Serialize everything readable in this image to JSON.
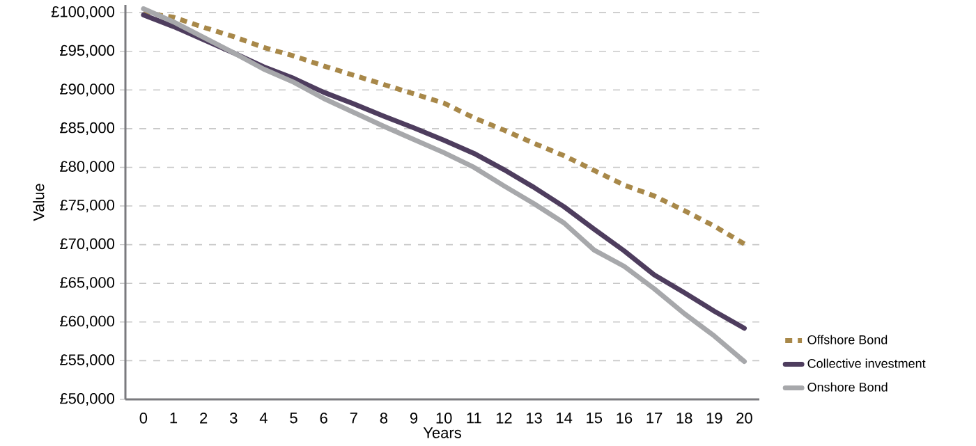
{
  "chart_data": {
    "type": "line",
    "xlabel": "Years",
    "ylabel": "Value",
    "x": [
      0,
      1,
      2,
      3,
      4,
      5,
      6,
      7,
      8,
      9,
      10,
      11,
      12,
      13,
      14,
      15,
      16,
      17,
      18,
      19,
      20
    ],
    "series": [
      {
        "name": "Offshore Bond",
        "color": "#a88849",
        "line_style": "dotted",
        "values": [
          100000,
          99400,
          98100,
          96900,
          95500,
          94400,
          93100,
          91900,
          90700,
          89500,
          88300,
          86400,
          84800,
          83100,
          81500,
          79600,
          77700,
          76300,
          74400,
          72400,
          70100
        ]
      },
      {
        "name": "Collective investment",
        "color": "#4e3d5e",
        "line_style": "solid",
        "values": [
          99700,
          98200,
          96500,
          94800,
          93000,
          91500,
          89700,
          88200,
          86600,
          85100,
          83500,
          81800,
          79700,
          77400,
          74900,
          72000,
          69200,
          66100,
          63800,
          61400,
          59200
        ]
      },
      {
        "name": "Onshore Bond",
        "color": "#a7a8ab",
        "line_style": "solid",
        "values": [
          100500,
          98800,
          96800,
          94800,
          92700,
          91000,
          88900,
          87100,
          85300,
          83600,
          81900,
          80000,
          77600,
          75300,
          72800,
          69300,
          67200,
          64300,
          61100,
          58200,
          54900
        ]
      }
    ],
    "xlim": [
      -0.6,
      20.5
    ],
    "xticks": [
      0,
      1,
      2,
      3,
      4,
      5,
      6,
      7,
      8,
      9,
      10,
      11,
      12,
      13,
      14,
      15,
      16,
      17,
      18,
      19,
      20
    ],
    "ylim": [
      50000,
      101000
    ],
    "yticks": [
      {
        "value": 50000,
        "label": "£50,000"
      },
      {
        "value": 55000,
        "label": "£55,000"
      },
      {
        "value": 60000,
        "label": "£60,000"
      },
      {
        "value": 65000,
        "label": "£65,000"
      },
      {
        "value": 70000,
        "label": "£70,000"
      },
      {
        "value": 75000,
        "label": "£75,000"
      },
      {
        "value": 80000,
        "label": "£80,000"
      },
      {
        "value": 85000,
        "label": "£85,000"
      },
      {
        "value": 90000,
        "label": "£90,000"
      },
      {
        "value": 95000,
        "label": "£95,000"
      },
      {
        "value": 100000,
        "label": "£100,000"
      }
    ],
    "grid": "y",
    "legend": "right"
  }
}
